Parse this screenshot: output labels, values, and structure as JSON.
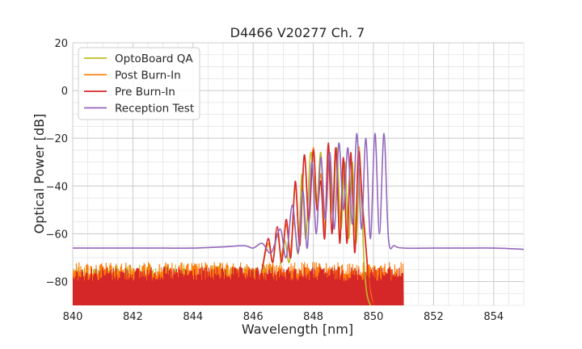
{
  "chart_data": {
    "type": "line",
    "title": "D4466 V20277 Ch. 7",
    "xlabel": "Wavelength [nm]",
    "ylabel": "Optical Power [dB]",
    "xlim": [
      840,
      855
    ],
    "ylim": [
      -90,
      20
    ],
    "xticks": [
      840,
      842,
      844,
      846,
      848,
      850,
      852,
      854
    ],
    "yticks": [
      20,
      0,
      -20,
      -40,
      -60,
      -80
    ],
    "ytick_labels": [
      "20",
      "0",
      "−20",
      "−40",
      "−60",
      "−80"
    ],
    "grid": true,
    "legend_position": "top-left",
    "series": [
      {
        "name": "OptoBoard QA",
        "color": "#bcbd22",
        "noise_floor": [
          -90,
          -73
        ],
        "noise_range_x": [
          840,
          846.9
        ],
        "x": [
          846.9,
          847.05,
          847.2,
          847.35,
          847.5,
          847.62,
          847.75,
          847.9,
          848.0,
          848.12,
          848.25,
          848.38,
          848.5,
          848.65,
          848.78,
          848.92,
          849.05,
          849.18,
          849.3,
          849.42,
          849.55,
          849.68,
          849.78,
          849.9
        ],
        "y": [
          -73,
          -63,
          -72,
          -55,
          -68,
          -35,
          -62,
          -27,
          -35,
          -47,
          -26,
          -58,
          -25,
          -52,
          -24,
          -58,
          -30,
          -62,
          -30,
          -64,
          -33,
          -70,
          -85,
          -90
        ]
      },
      {
        "name": "Post Burn-In",
        "color": "#ff7f0e",
        "noise_floor": [
          -90,
          -72
        ],
        "noise_range_x": [
          840,
          851
        ],
        "x": [
          846.3,
          846.5,
          846.65,
          846.8,
          846.95,
          847.1,
          847.25,
          847.4,
          847.55,
          847.7,
          847.85,
          848.0,
          848.12,
          848.25,
          848.38,
          848.5,
          848.62,
          848.75,
          848.88,
          849.0,
          849.12,
          849.25,
          849.38,
          849.5,
          849.62,
          849.75,
          849.87,
          850.0
        ],
        "y": [
          -75,
          -64,
          -72,
          -60,
          -70,
          -56,
          -68,
          -40,
          -63,
          -27,
          -52,
          -24,
          -48,
          -35,
          -60,
          -24,
          -60,
          -24,
          -62,
          -30,
          -60,
          -28,
          -66,
          -24,
          -44,
          -65,
          -82,
          -90
        ]
      },
      {
        "name": "Pre Burn-In",
        "color": "#d62728",
        "noise_floor": [
          -90,
          -74
        ],
        "noise_range_x": [
          840,
          851
        ],
        "x": [
          846.3,
          846.5,
          846.65,
          846.8,
          846.95,
          847.1,
          847.25,
          847.4,
          847.55,
          847.7,
          847.85,
          848.0,
          848.12,
          848.25,
          848.38,
          848.5,
          848.62,
          848.75,
          848.88,
          849.0,
          849.12,
          849.25,
          849.38,
          849.5,
          849.62,
          849.75,
          849.87,
          850.0
        ],
        "y": [
          -75,
          -62,
          -72,
          -57,
          -72,
          -54,
          -70,
          -38,
          -65,
          -27,
          -55,
          -25,
          -50,
          -38,
          -62,
          -22,
          -60,
          -24,
          -64,
          -28,
          -64,
          -26,
          -68,
          -26,
          -46,
          -66,
          -84,
          -90
        ]
      },
      {
        "name": "Reception Test",
        "color": "#9467bd",
        "x": [
          840,
          841,
          842,
          843,
          844,
          845,
          845.7,
          846.0,
          846.3,
          846.6,
          846.9,
          847.1,
          847.3,
          847.5,
          847.65,
          847.8,
          847.95,
          848.1,
          848.25,
          848.4,
          848.55,
          848.7,
          848.85,
          849.0,
          849.15,
          849.3,
          849.45,
          849.6,
          849.75,
          849.9,
          850.05,
          850.2,
          850.35,
          850.5,
          850.7,
          851.0,
          852,
          853,
          854,
          855
        ],
        "y": [
          -66,
          -66,
          -66,
          -66,
          -66,
          -65.5,
          -65,
          -66,
          -64,
          -68,
          -58,
          -70,
          -48,
          -68,
          -42,
          -66,
          -30,
          -60,
          -28,
          -54,
          -26,
          -58,
          -22,
          -50,
          -24,
          -56,
          -18,
          -58,
          -20,
          -62,
          -18,
          -60,
          -18,
          -62,
          -65,
          -66,
          -66,
          -66,
          -66,
          -66.5
        ]
      }
    ]
  }
}
